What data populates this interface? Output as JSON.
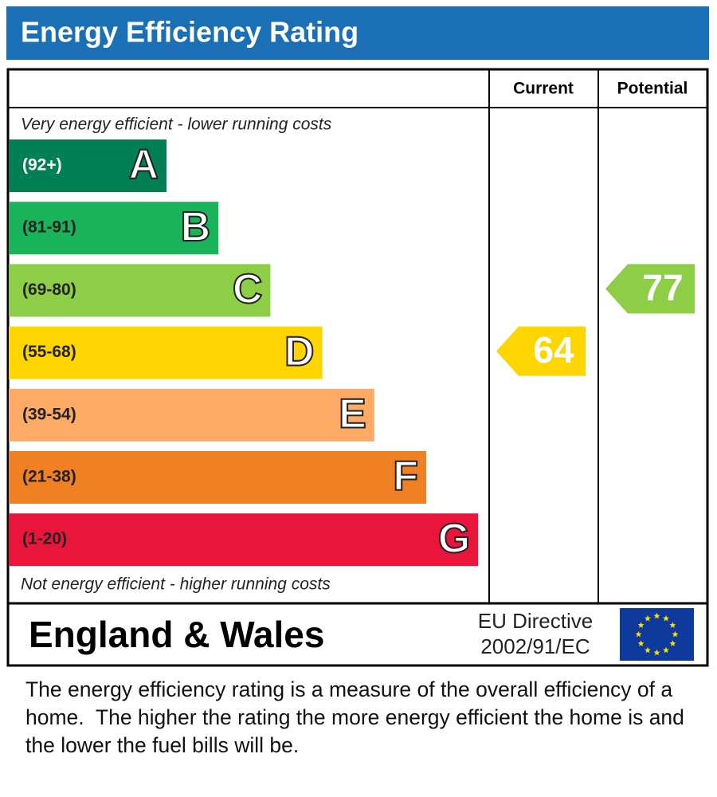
{
  "header": {
    "title": "Energy Efficiency Rating"
  },
  "columns": {
    "current": "Current",
    "potential": "Potential"
  },
  "top_note": "Very energy efficient - lower running costs",
  "bands": [
    {
      "range": "(92+)",
      "letter": "A",
      "color": "#008054"
    },
    {
      "range": "(81-91)",
      "letter": "B",
      "color": "#19b459"
    },
    {
      "range": "(69-80)",
      "letter": "C",
      "color": "#8dce46"
    },
    {
      "range": "(55-68)",
      "letter": "D",
      "color": "#ffd500"
    },
    {
      "range": "(39-54)",
      "letter": "E",
      "color": "#fcaa65"
    },
    {
      "range": "(21-38)",
      "letter": "F",
      "color": "#ef8023"
    },
    {
      "range": "(1-20)",
      "letter": "G",
      "color": "#e9153b"
    }
  ],
  "bottom_note": "Not energy efficient - higher running costs",
  "ratings": {
    "current": 64,
    "potential": 77
  },
  "footer": {
    "region": "England & Wales",
    "directive": [
      "EU Directive",
      "2002/91/EC"
    ]
  },
  "description": "The energy efficiency rating is a measure of the overall efficiency of a home.  The higher the rating the more energy efficient the home is and the lower the fuel bills will be."
}
